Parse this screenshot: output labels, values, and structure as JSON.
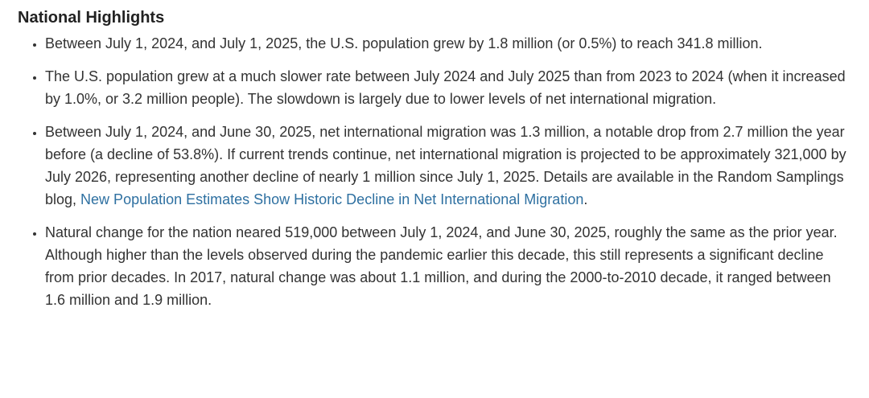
{
  "heading": "National Highlights",
  "bullets": [
    {
      "text": "Between July 1, 2024, and July 1, 2025, the U.S. population grew by 1.8 million (or 0.5%) to reach 341.8 million."
    },
    {
      "text": "The U.S. population grew at a much slower rate between July 2024 and July 2025 than from 2023 to 2024 (when it increased by 1.0%, or 3.2 million people). The slowdown is largely due to lower levels of net international migration."
    },
    {
      "text": "Between July 1, 2024, and June 30, 2025, net international migration was 1.3 million, a notable drop from 2.7 million the year before (a decline of 53.8%). If current trends continue, net international migration is projected to be approximately 321,000 by July 2026, representing another decline of nearly 1 million since July 1, 2025. Details are available in the Random Samplings blog, ",
      "link": "New Population Estimates Show Historic Decline in Net International Migration",
      "end": "."
    },
    {
      "text": "Natural change for the nation neared 519,000 between July 1, 2024, and June 30, 2025, roughly the same as the prior year. Although higher than the levels observed during the pandemic earlier this decade, this still represents a significant decline from prior decades. In 2017, natural change was about 1.1 million, and during the 2000-to-2010 decade, it ranged between 1.6 million and 1.9 million."
    }
  ]
}
